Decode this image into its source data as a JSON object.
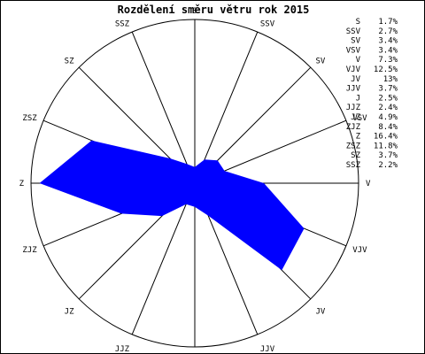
{
  "chart_data": {
    "type": "radar",
    "title": "Rozdělení směru větru rok 2015",
    "unit": "%",
    "categories": [
      "S",
      "SSV",
      "SV",
      "VSV",
      "V",
      "VJV",
      "JV",
      "JJV",
      "J",
      "JJZ",
      "JZ",
      "ZJZ",
      "Z",
      "ZSZ",
      "SZ",
      "SSZ"
    ],
    "values": [
      1.7,
      2.7,
      3.4,
      3.4,
      7.3,
      12.5,
      13,
      3.7,
      2.5,
      2.4,
      4.9,
      8.4,
      16.4,
      11.8,
      3.7,
      2.2
    ],
    "legend_labels": [
      "1.7%",
      "2.7%",
      "3.4%",
      "3.4%",
      "7.3%",
      "12.5%",
      "13%",
      "3.7%",
      "2.5%",
      "2.4%",
      "4.9%",
      "8.4%",
      "16.4%",
      "11.8%",
      "3.7%",
      "2.2%"
    ],
    "rmax": 17.3,
    "legend_position": "top-right",
    "colors": {
      "fill": "#0000ff",
      "axis": "#000000",
      "text": "#000000",
      "background": "#ffffff"
    }
  }
}
